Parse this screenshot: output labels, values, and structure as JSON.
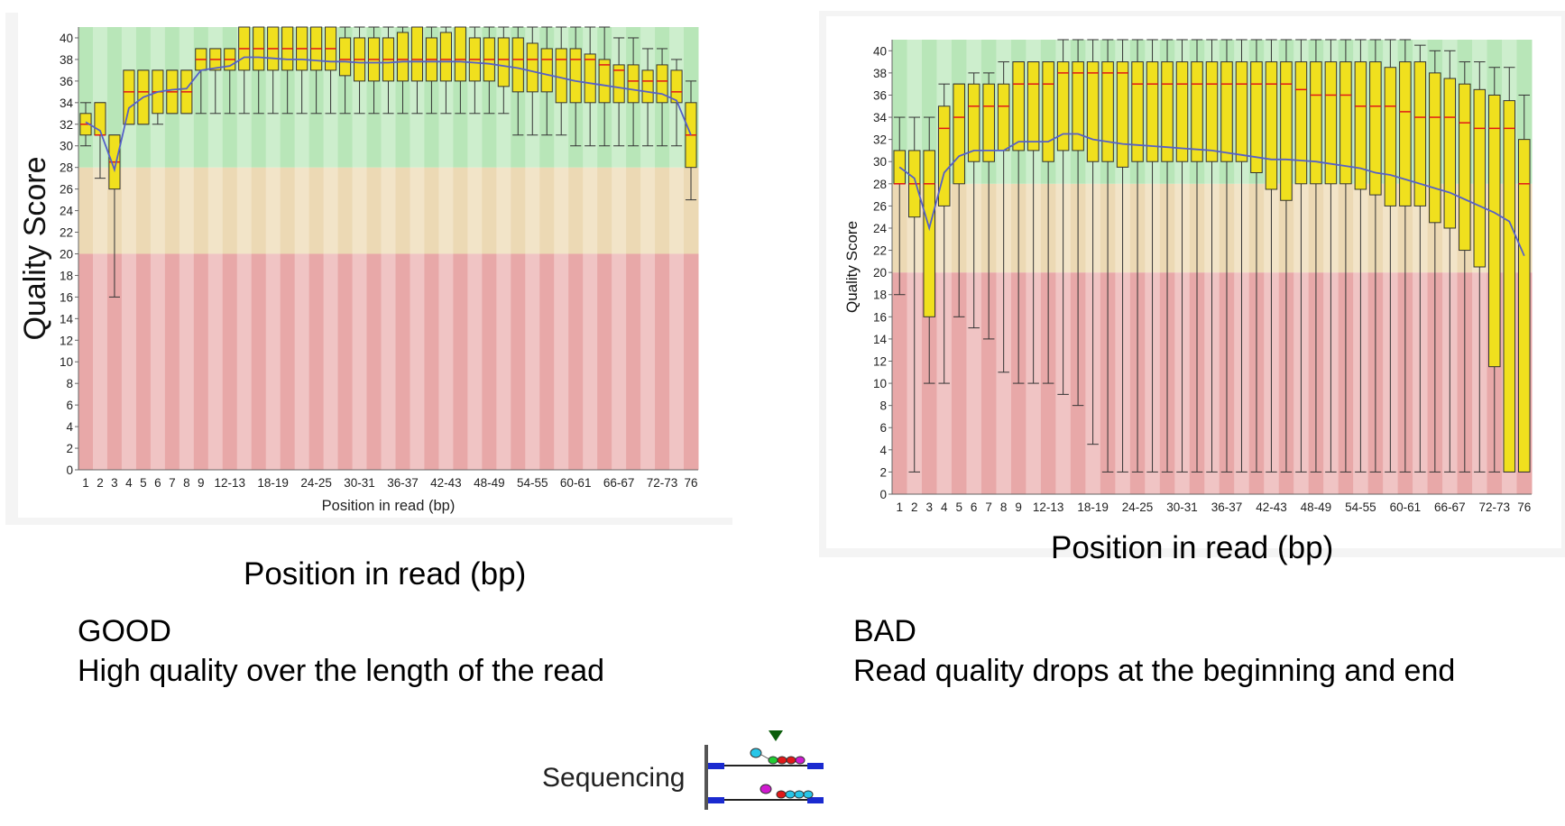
{
  "good": {
    "caption_title": "GOOD",
    "caption_text": "High quality over the length of the read",
    "outer_xlabel": "Position in read (bp)",
    "chart_data": {
      "type": "box",
      "xlabel": "Position in read (bp)",
      "ylabel": "Quality Score",
      "ylim": [
        0,
        41
      ],
      "yticks": [
        0,
        2,
        4,
        6,
        8,
        10,
        12,
        14,
        16,
        18,
        20,
        22,
        24,
        26,
        28,
        30,
        32,
        34,
        36,
        38,
        40
      ],
      "ytick_labels": [
        "0",
        "2",
        "4",
        "6",
        "8",
        "10",
        "12",
        "14",
        "16",
        "18",
        "20",
        "22",
        "24",
        "26",
        "28",
        "30",
        "32",
        "34",
        "36",
        "38",
        "40"
      ],
      "bands": [
        {
          "from": 0,
          "to": 20,
          "color": "#e8a8a8",
          "alt": "#f0c4c4"
        },
        {
          "from": 20,
          "to": 28,
          "color": "#ecd9b4",
          "alt": "#f2e4c8"
        },
        {
          "from": 28,
          "to": 41,
          "color": "#b8e6b8",
          "alt": "#cdeecd"
        }
      ],
      "categories": [
        "1",
        "2",
        "3",
        "4",
        "5",
        "6",
        "7",
        "8",
        "9",
        "10-11",
        "12-13",
        "14-15",
        "16-17",
        "18-19",
        "20-21",
        "22-23",
        "24-25",
        "26-27",
        "28-29",
        "30-31",
        "32-33",
        "34-35",
        "36-37",
        "38-39",
        "40-41",
        "42-43",
        "44-45",
        "46-47",
        "48-49",
        "50-51",
        "52-53",
        "54-55",
        "56-57",
        "58-59",
        "60-61",
        "62-63",
        "64-65",
        "66-67",
        "68-69",
        "70-71",
        "72-73",
        "74-75",
        "76"
      ],
      "tick_labels": [
        "1",
        "2",
        "3",
        "4",
        "5",
        "6",
        "7",
        "8",
        "9",
        "",
        "12-13",
        "",
        "",
        "18-19",
        "",
        "",
        "24-25",
        "",
        "",
        "30-31",
        "",
        "",
        "36-37",
        "",
        "",
        "42-43",
        "",
        "",
        "48-49",
        "",
        "",
        "54-55",
        "",
        "",
        "60-61",
        "",
        "",
        "66-67",
        "",
        "",
        "72-73",
        "",
        "76"
      ],
      "q1": [
        31,
        31,
        26,
        32,
        32,
        33,
        33,
        33,
        37,
        37,
        37,
        37,
        37,
        37,
        37,
        37,
        37,
        37,
        36.5,
        36,
        36,
        36,
        36,
        36,
        36,
        36,
        36,
        36,
        36,
        35.5,
        35,
        35,
        35,
        34,
        34,
        34,
        34,
        34,
        34,
        34,
        34,
        34,
        28
      ],
      "q3": [
        33,
        34,
        31,
        37,
        37,
        37,
        37,
        37,
        39,
        39,
        39,
        41,
        41,
        41,
        41,
        41,
        41,
        41,
        40,
        40,
        40,
        40,
        40.5,
        41,
        40,
        40.5,
        41,
        40,
        40,
        40,
        40,
        39.5,
        39,
        39,
        39,
        38.5,
        38,
        37.5,
        37.5,
        37,
        37.5,
        37,
        34
      ],
      "median": [
        32,
        31,
        28.5,
        35,
        35,
        35,
        35,
        35,
        38,
        38,
        38,
        39,
        39,
        39,
        39,
        39,
        39,
        39,
        38,
        38,
        38,
        38,
        38,
        38,
        38,
        38,
        38,
        38,
        38,
        38,
        38,
        38,
        38,
        38,
        38,
        38,
        37.5,
        37,
        36,
        36,
        36,
        35,
        31
      ],
      "mean": [
        32.2,
        31.4,
        27.8,
        33.5,
        34.5,
        35.0,
        35.2,
        35.3,
        37.0,
        37.2,
        37.4,
        38.2,
        38.2,
        38.1,
        38.0,
        38.0,
        37.9,
        37.8,
        37.8,
        37.7,
        37.7,
        37.7,
        37.8,
        37.8,
        37.8,
        37.8,
        37.8,
        37.7,
        37.6,
        37.4,
        37.2,
        36.9,
        36.6,
        36.3,
        36.0,
        35.8,
        35.6,
        35.4,
        35.2,
        35.0,
        34.8,
        34.2,
        31.0
      ],
      "low": [
        30,
        27,
        16,
        32,
        32,
        32,
        33,
        33,
        33,
        33,
        33,
        33,
        33,
        33,
        33,
        33,
        33,
        33,
        33,
        33,
        33,
        33,
        33,
        33,
        33,
        33,
        33,
        33,
        33,
        33,
        31,
        31,
        31,
        31,
        30,
        30,
        30,
        30,
        30,
        30,
        30,
        30,
        25
      ],
      "high": [
        34,
        34,
        31,
        37,
        37,
        37,
        37,
        37,
        39,
        39,
        39,
        41,
        41,
        41,
        41,
        41,
        41,
        41,
        41,
        41,
        41,
        41,
        41,
        41,
        41,
        41,
        41,
        41,
        41,
        41,
        41,
        41,
        41,
        41,
        41,
        41,
        41,
        40,
        40,
        39,
        39,
        38,
        36
      ]
    }
  },
  "bad": {
    "caption_title": "BAD",
    "caption_text": "Read quality drops at the beginning and end",
    "outer_xlabel": "Position in read (bp)",
    "chart_data": {
      "type": "box",
      "xlabel": "",
      "ylabel": "Quality Score",
      "ylim": [
        0,
        41
      ],
      "yticks": [
        0,
        2,
        4,
        6,
        8,
        10,
        12,
        14,
        16,
        18,
        20,
        22,
        24,
        26,
        28,
        30,
        32,
        34,
        36,
        38,
        40
      ],
      "ytick_labels": [
        "0",
        "2",
        "4",
        "6",
        "8",
        "10",
        "12",
        "14",
        "16",
        "18",
        "20",
        "22",
        "24",
        "26",
        "28",
        "30",
        "32",
        "34",
        "36",
        "38",
        "40"
      ],
      "bands": [
        {
          "from": 0,
          "to": 20,
          "color": "#e8a8a8",
          "alt": "#f0c4c4"
        },
        {
          "from": 20,
          "to": 28,
          "color": "#ecd9b4",
          "alt": "#f2e4c8"
        },
        {
          "from": 28,
          "to": 41,
          "color": "#b8e6b8",
          "alt": "#cdeecd"
        }
      ],
      "categories": [
        "1",
        "2",
        "3",
        "4",
        "5",
        "6",
        "7",
        "8",
        "9",
        "10-11",
        "12-13",
        "14-15",
        "16-17",
        "18-19",
        "20-21",
        "22-23",
        "24-25",
        "26-27",
        "28-29",
        "30-31",
        "32-33",
        "34-35",
        "36-37",
        "38-39",
        "40-41",
        "42-43",
        "44-45",
        "46-47",
        "48-49",
        "50-51",
        "52-53",
        "54-55",
        "56-57",
        "58-59",
        "60-61",
        "62-63",
        "64-65",
        "66-67",
        "68-69",
        "70-71",
        "72-73",
        "74-75",
        "76"
      ],
      "tick_labels": [
        "1",
        "2",
        "3",
        "4",
        "5",
        "6",
        "7",
        "8",
        "9",
        "",
        "12-13",
        "",
        "",
        "18-19",
        "",
        "",
        "24-25",
        "",
        "",
        "30-31",
        "",
        "",
        "36-37",
        "",
        "",
        "42-43",
        "",
        "",
        "48-49",
        "",
        "",
        "54-55",
        "",
        "",
        "60-61",
        "",
        "",
        "66-67",
        "",
        "",
        "72-73",
        "",
        "76"
      ],
      "q1": [
        28,
        25,
        16,
        26,
        28,
        30,
        30,
        31,
        31,
        31,
        30,
        31,
        31,
        30,
        30,
        29.5,
        30,
        30,
        30,
        30,
        30,
        30,
        30,
        30,
        29,
        27.5,
        26.5,
        28,
        28,
        28,
        28,
        27.5,
        27,
        26,
        26,
        26,
        24.5,
        24,
        22,
        20.5,
        11.5,
        2,
        2
      ],
      "q3": [
        31,
        31,
        31,
        35,
        37,
        37,
        37,
        37,
        39,
        39,
        39,
        39,
        39,
        39,
        39,
        39,
        39,
        39,
        39,
        39,
        39,
        39,
        39,
        39,
        39,
        39,
        39,
        39,
        39,
        39,
        39,
        39,
        39,
        38.5,
        39,
        39,
        38,
        37.5,
        37,
        36.5,
        36,
        35.5,
        32
      ],
      "median": [
        28,
        28,
        28,
        33,
        34,
        35,
        35,
        35,
        37,
        37,
        37,
        38,
        38,
        38,
        38,
        38,
        37,
        37,
        37,
        37,
        37,
        37,
        37,
        37,
        37,
        37,
        37,
        36.5,
        36,
        36,
        36,
        35,
        35,
        35,
        34.5,
        34,
        34,
        34,
        33.5,
        33,
        33,
        33,
        28
      ],
      "mean": [
        29.5,
        28.5,
        24,
        29,
        30.5,
        31.0,
        31.0,
        31.0,
        31.8,
        31.8,
        31.8,
        32.5,
        32.5,
        32.0,
        31.8,
        31.6,
        31.5,
        31.4,
        31.3,
        31.2,
        31.1,
        31.0,
        30.8,
        30.6,
        30.4,
        30.2,
        30.2,
        30.1,
        30.0,
        29.8,
        29.6,
        29.4,
        29.0,
        28.8,
        28.4,
        28.0,
        27.6,
        27.2,
        26.6,
        26.0,
        25.4,
        24.6,
        21.5
      ],
      "low": [
        18,
        2,
        10,
        10,
        16,
        15,
        14,
        11,
        10,
        10,
        10,
        9,
        8,
        4.5,
        2,
        2,
        2,
        2,
        2,
        2,
        2,
        2,
        2,
        2,
        2,
        2,
        2,
        2,
        2,
        2,
        2,
        2,
        2,
        2,
        2,
        2,
        2,
        2,
        2,
        2,
        2,
        2,
        2
      ],
      "high": [
        34,
        34,
        34,
        37,
        37,
        38,
        38,
        39,
        39,
        39,
        39,
        41,
        41,
        41,
        41,
        41,
        41,
        41,
        41,
        41,
        41,
        41,
        41,
        41,
        41,
        41,
        41,
        41,
        41,
        41,
        41,
        41,
        41,
        41,
        41,
        40.5,
        40,
        40,
        39,
        39,
        38.5,
        38.5,
        36
      ]
    }
  },
  "sequencing": {
    "label": "Sequencing"
  }
}
